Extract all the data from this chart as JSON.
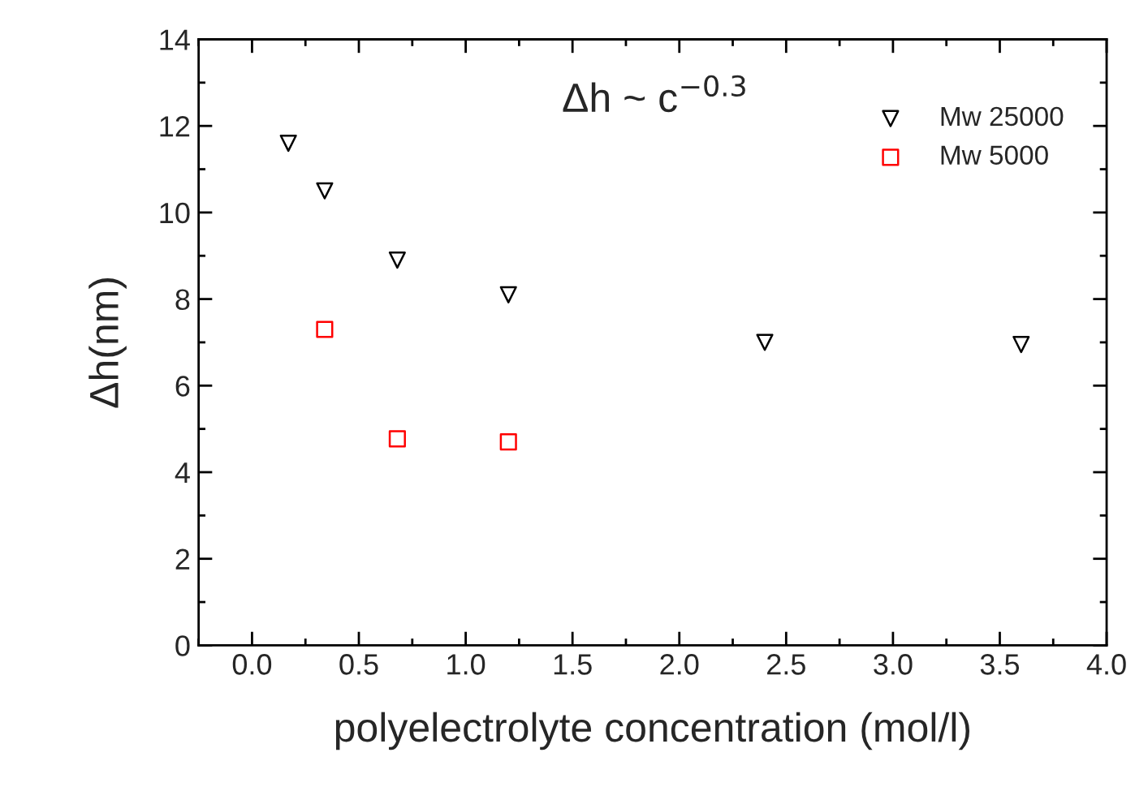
{
  "chart_data": {
    "type": "scatter",
    "xlabel": "polyelectrolyte concentration (mol/l)",
    "ylabel": "Δh(nm)",
    "xlim": [
      -0.25,
      4.0
    ],
    "ylim": [
      0,
      14
    ],
    "xticks": [
      {
        "value": 0.0,
        "label": "0.0"
      },
      0.5,
      {
        "value": 1.0,
        "label": "1.0"
      },
      1.5,
      {
        "value": 2.0,
        "label": "2.0"
      },
      2.5,
      {
        "value": 3.0,
        "label": "3.0"
      },
      3.5,
      {
        "value": 4.0,
        "label": "4.0"
      }
    ],
    "yticks": [
      0,
      2,
      4,
      6,
      8,
      10,
      12,
      14
    ],
    "annotations": [
      "Δh ~ c$^{−0.3}$"
    ],
    "legend": "top right",
    "grid": false,
    "series": [
      {
        "name": "Mw 25000",
        "color": "#000000",
        "marker": "triangle",
        "x": [
          0.17,
          0.34,
          0.68,
          1.2,
          2.4,
          3.6
        ],
        "values": [
          11.6,
          10.5,
          8.9,
          8.1,
          7.0,
          6.95
        ]
      },
      {
        "name": "Mw 5000",
        "color": "#ff0000",
        "marker": "square",
        "x": [
          0.34,
          0.68,
          1.2
        ],
        "values": [
          7.3,
          4.77,
          4.7
        ]
      }
    ]
  }
}
